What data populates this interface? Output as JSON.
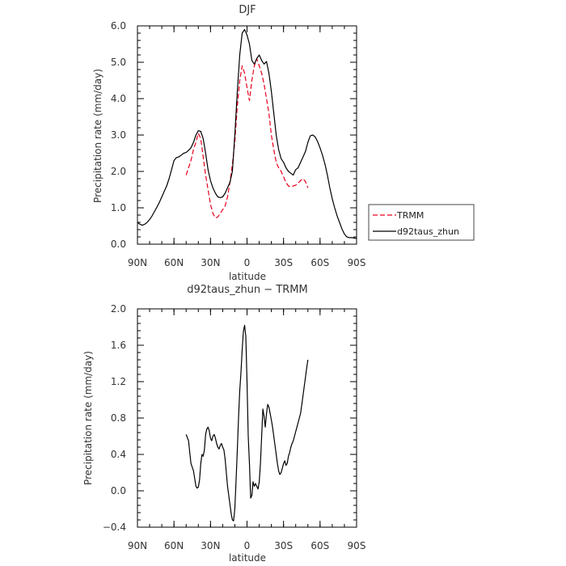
{
  "chart_data": [
    {
      "type": "line",
      "title": "DJF",
      "xlabel": "latitude",
      "ylabel": "Precipitation rate (mm/day)",
      "xlim": [
        90,
        -90
      ],
      "ylim": [
        0.0,
        6.0
      ],
      "x_ticks": [
        90,
        60,
        30,
        0,
        -30,
        -60,
        -90
      ],
      "x_tick_labels": [
        "90N",
        "60N",
        "30N",
        "0",
        "30S",
        "60S",
        "90S"
      ],
      "y_ticks": [
        0.0,
        1.0,
        2.0,
        3.0,
        4.0,
        5.0,
        6.0
      ],
      "y_tick_labels": [
        "0.0",
        "1.0",
        "2.0",
        "3.0",
        "4.0",
        "5.0",
        "6.0"
      ],
      "legend_position": "outside-right",
      "series": [
        {
          "name": "TRMM",
          "color": "#e8001c",
          "dash": true,
          "x": [
            50,
            48,
            46,
            44,
            42,
            40,
            38,
            36,
            34,
            32,
            30,
            28,
            26,
            24,
            22,
            20,
            18,
            16,
            14,
            12,
            10,
            8,
            6,
            4,
            2,
            0,
            -2,
            -4,
            -6,
            -8,
            -10,
            -12,
            -14,
            -16,
            -18,
            -20,
            -22,
            -24,
            -26,
            -28,
            -30,
            -32,
            -34,
            -36,
            -38,
            -40,
            -42,
            -44,
            -46,
            -48,
            -50
          ],
          "y": [
            1.9,
            2.1,
            2.3,
            2.6,
            2.8,
            3.05,
            2.9,
            2.4,
            1.9,
            1.5,
            1.1,
            0.85,
            0.72,
            0.75,
            0.85,
            0.95,
            1.05,
            1.3,
            1.7,
            2.2,
            2.8,
            3.8,
            4.5,
            4.9,
            4.7,
            4.3,
            3.95,
            4.5,
            4.9,
            5.1,
            4.9,
            4.7,
            4.4,
            4.0,
            3.6,
            3.0,
            2.6,
            2.25,
            2.1,
            2.0,
            1.85,
            1.7,
            1.6,
            1.58,
            1.6,
            1.62,
            1.68,
            1.75,
            1.8,
            1.72,
            1.55
          ]
        },
        {
          "name": "d92taus_zhun",
          "color": "#000000",
          "dash": false,
          "x": [
            90,
            88,
            86,
            84,
            82,
            80,
            78,
            76,
            74,
            72,
            70,
            68,
            66,
            64,
            62,
            60,
            58,
            56,
            54,
            52,
            50,
            48,
            46,
            44,
            42,
            40,
            38,
            36,
            34,
            32,
            30,
            28,
            26,
            24,
            22,
            20,
            18,
            16,
            14,
            12,
            10,
            8,
            6,
            4,
            2,
            0,
            -2,
            -4,
            -6,
            -8,
            -10,
            -12,
            -14,
            -16,
            -18,
            -20,
            -22,
            -24,
            -26,
            -28,
            -30,
            -32,
            -34,
            -36,
            -38,
            -40,
            -42,
            -44,
            -46,
            -48,
            -50,
            -52,
            -54,
            -56,
            -58,
            -60,
            -62,
            -64,
            -66,
            -68,
            -70,
            -72,
            -74,
            -76,
            -78,
            -80,
            -82,
            -84,
            -86,
            -88,
            -90
          ],
          "y": [
            0.6,
            0.55,
            0.52,
            0.55,
            0.6,
            0.68,
            0.78,
            0.9,
            1.02,
            1.15,
            1.3,
            1.45,
            1.6,
            1.8,
            2.05,
            2.3,
            2.38,
            2.4,
            2.45,
            2.5,
            2.52,
            2.58,
            2.65,
            2.8,
            3.0,
            3.12,
            3.1,
            2.9,
            2.5,
            2.05,
            1.75,
            1.55,
            1.4,
            1.3,
            1.28,
            1.3,
            1.4,
            1.55,
            1.7,
            2.0,
            3.0,
            4.2,
            5.2,
            5.8,
            5.9,
            5.75,
            5.5,
            5.05,
            4.95,
            5.1,
            5.2,
            5.05,
            4.95,
            5.02,
            4.7,
            4.2,
            3.6,
            3.0,
            2.6,
            2.35,
            2.25,
            2.1,
            2.0,
            1.95,
            1.9,
            2.05,
            2.1,
            2.25,
            2.4,
            2.55,
            2.8,
            2.98,
            3.0,
            2.95,
            2.82,
            2.65,
            2.45,
            2.2,
            1.9,
            1.55,
            1.25,
            1.0,
            0.78,
            0.6,
            0.42,
            0.28,
            0.2,
            0.18,
            0.18,
            0.17,
            0.16
          ]
        }
      ]
    },
    {
      "type": "line",
      "title": "d92taus_zhun − TRMM",
      "xlabel": "latitude",
      "ylabel": "Precipitation rate (mm/day)",
      "xlim": [
        90,
        -90
      ],
      "ylim": [
        -0.4,
        2.0
      ],
      "x_ticks": [
        90,
        60,
        30,
        0,
        -30,
        -60,
        -90
      ],
      "x_tick_labels": [
        "90N",
        "60N",
        "30N",
        "0",
        "30S",
        "60S",
        "90S"
      ],
      "y_ticks": [
        -0.4,
        0.0,
        0.4,
        0.8,
        1.2,
        1.6,
        2.0
      ],
      "y_tick_labels": [
        "−0.4",
        "0.0",
        "0.4",
        "0.8",
        "1.2",
        "1.6",
        "2.0"
      ],
      "series": [
        {
          "color": "#000000",
          "dash": false,
          "x": [
            50,
            48,
            47,
            46,
            44,
            42,
            41,
            40,
            39,
            38,
            37,
            36,
            35,
            34,
            33,
            32,
            31,
            30,
            29,
            28,
            27,
            26,
            25,
            24,
            23,
            22,
            21,
            20,
            19,
            18,
            17,
            16,
            15,
            14,
            13,
            12,
            11,
            10,
            9,
            8,
            7,
            6,
            5,
            4,
            3,
            2,
            1,
            0,
            -1,
            -2,
            -3,
            -4,
            -5,
            -6,
            -7,
            -8,
            -9,
            -10,
            -11,
            -12,
            -13,
            -14,
            -15,
            -16,
            -17,
            -18,
            -19,
            -20,
            -21,
            -22,
            -23,
            -24,
            -25,
            -26,
            -27,
            -28,
            -29,
            -30,
            -31,
            -32,
            -33,
            -34,
            -35,
            -36,
            -37,
            -38,
            -39,
            -40,
            -41,
            -42,
            -43,
            -44,
            -45,
            -46,
            -47,
            -48,
            -49,
            -50
          ],
          "y": [
            0.62,
            0.55,
            0.42,
            0.3,
            0.22,
            0.05,
            0.03,
            0.04,
            0.12,
            0.3,
            0.4,
            0.38,
            0.45,
            0.62,
            0.68,
            0.7,
            0.66,
            0.58,
            0.55,
            0.6,
            0.62,
            0.58,
            0.52,
            0.48,
            0.46,
            0.5,
            0.52,
            0.48,
            0.45,
            0.35,
            0.2,
            0.05,
            -0.05,
            -0.15,
            -0.25,
            -0.32,
            -0.33,
            -0.2,
            0.1,
            0.45,
            0.8,
            1.1,
            1.3,
            1.55,
            1.75,
            1.82,
            1.7,
            1.2,
            0.6,
            0.3,
            -0.08,
            -0.05,
            0.1,
            0.05,
            0.08,
            0.05,
            0.02,
            0.1,
            0.3,
            0.6,
            0.9,
            0.82,
            0.7,
            0.85,
            0.95,
            0.92,
            0.85,
            0.78,
            0.7,
            0.6,
            0.5,
            0.4,
            0.3,
            0.22,
            0.18,
            0.2,
            0.25,
            0.3,
            0.33,
            0.28,
            0.3,
            0.38,
            0.42,
            0.48,
            0.52,
            0.55,
            0.6,
            0.65,
            0.7,
            0.75,
            0.8,
            0.85,
            0.95,
            1.05,
            1.15,
            1.25,
            1.35,
            1.44
          ]
        }
      ]
    }
  ]
}
